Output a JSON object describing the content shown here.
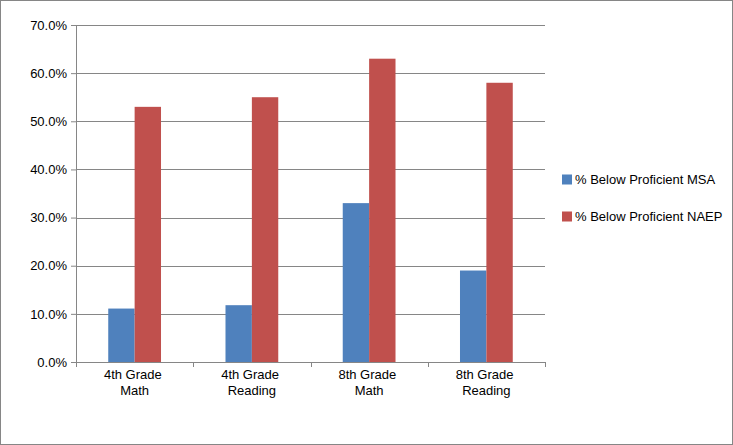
{
  "chart_data": {
    "type": "bar",
    "categories": [
      "4th Grade Math",
      "4th Grade Reading",
      "8th Grade Math",
      "8th Grade Reading"
    ],
    "series": [
      {
        "name": "% Below Proficient MSA",
        "color": "#4f81bd",
        "values": [
          11.1,
          11.8,
          33.0,
          19.0
        ]
      },
      {
        "name": "% Below Proficient NAEP",
        "color": "#c0504d",
        "values": [
          53.0,
          55.0,
          63.0,
          58.0
        ]
      }
    ],
    "ylim": [
      0,
      70
    ],
    "yticks": [
      {
        "value": 0,
        "label": "0.0%"
      },
      {
        "value": 10,
        "label": "10.0%"
      },
      {
        "value": 20,
        "label": "20.0%"
      },
      {
        "value": 30,
        "label": "30.0%"
      },
      {
        "value": 40,
        "label": "40.0%"
      },
      {
        "value": 50,
        "label": "50.0%"
      },
      {
        "value": 60,
        "label": "60.0%"
      },
      {
        "value": 70,
        "label": "70.0%"
      }
    ],
    "grid": true,
    "legend": "right"
  }
}
